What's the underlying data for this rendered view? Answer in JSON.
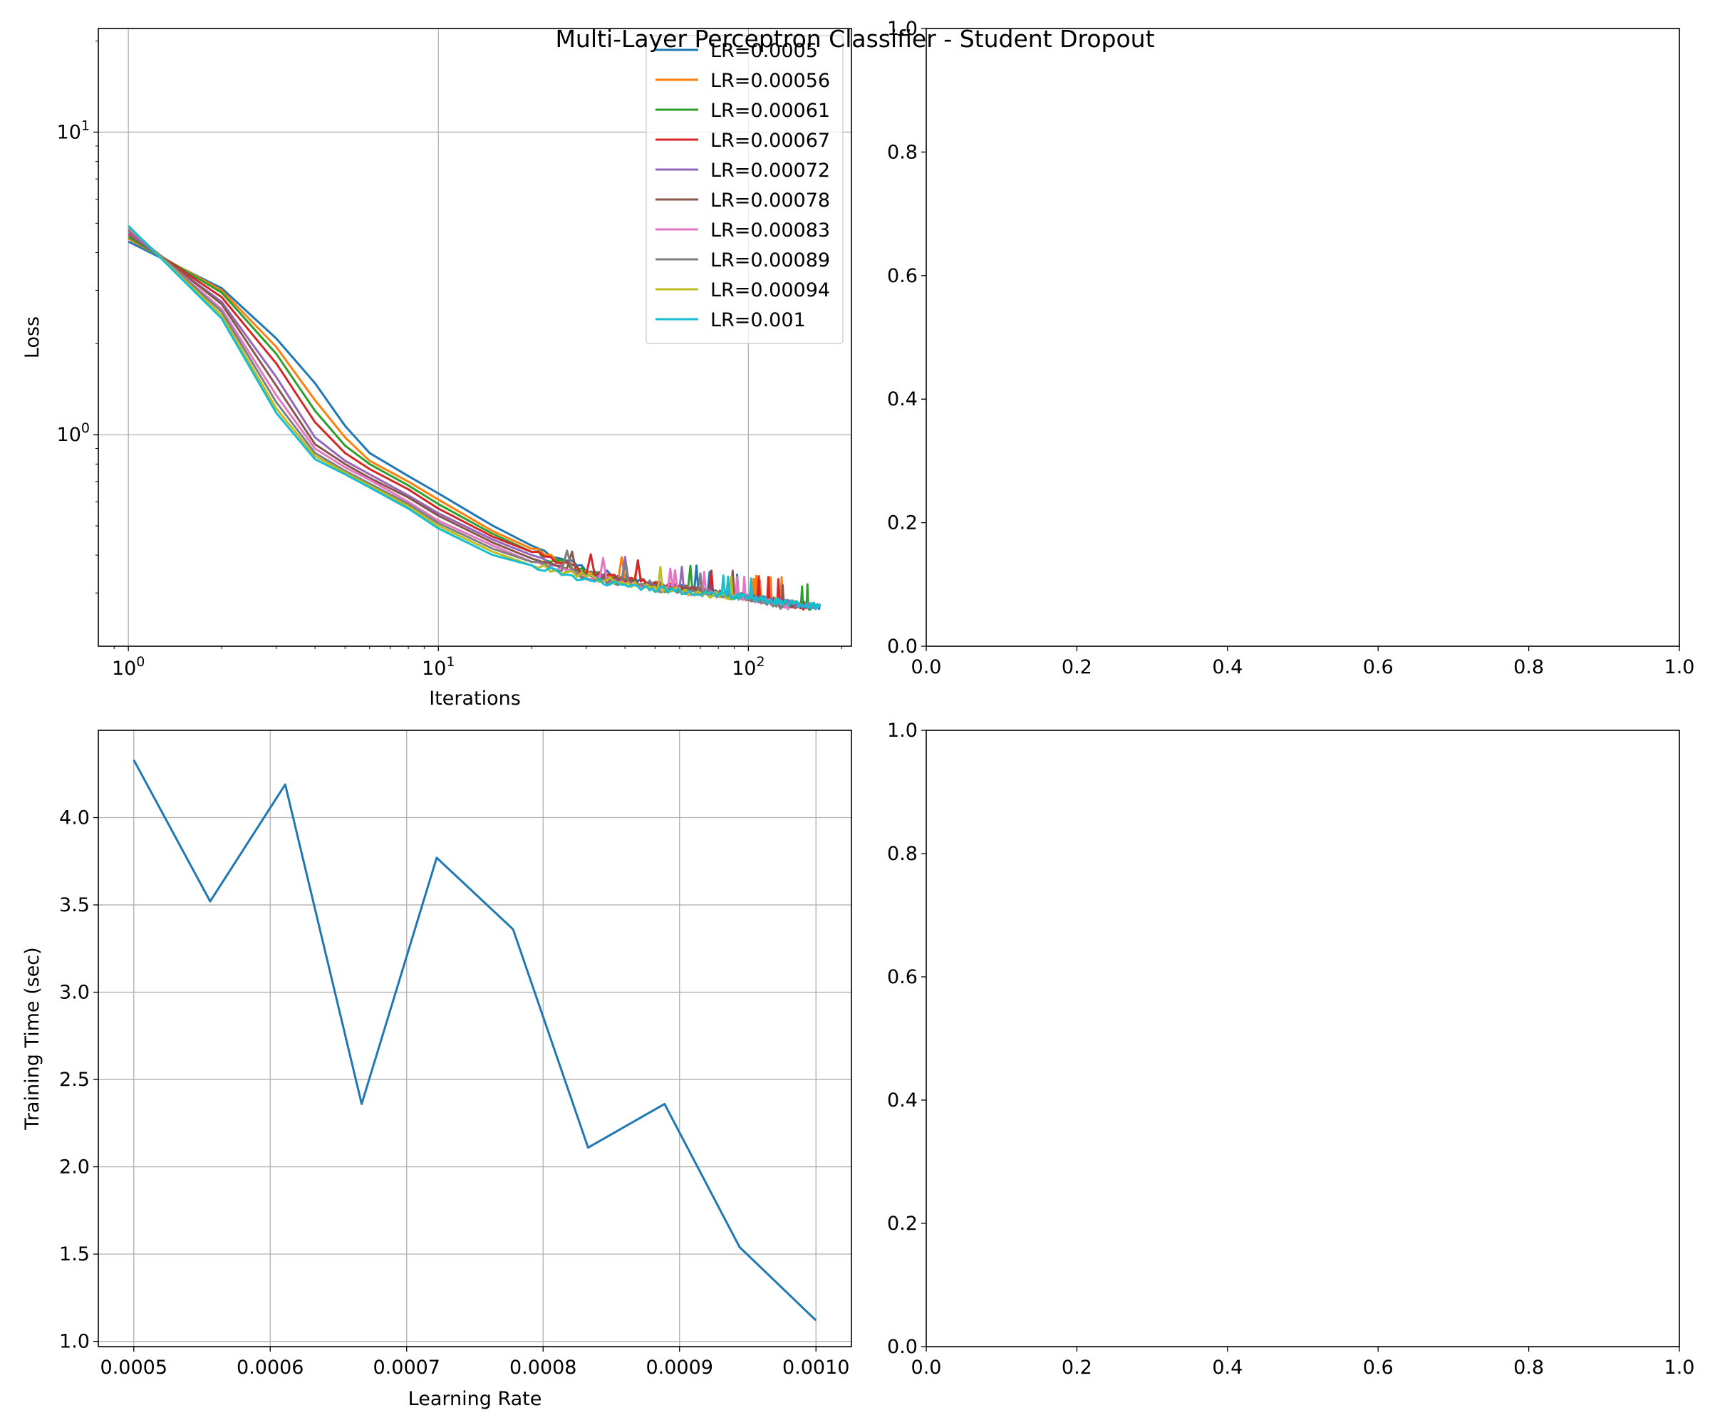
{
  "title": "Multi-Layer Perceptron Classifier - Student Dropout",
  "chart_data": [
    {
      "type": "line",
      "panel": "top-left",
      "xlabel": "Iterations",
      "ylabel": "Loss",
      "xscale": "log",
      "yscale": "log",
      "xlim": [
        0.8,
        215
      ],
      "ylim": [
        0.2,
        22
      ],
      "grid": true,
      "legend_placement": "upper-right",
      "x_ticks": [
        {
          "value": 1,
          "mantissa": "10",
          "exp": "0"
        },
        {
          "value": 10,
          "mantissa": "10",
          "exp": "1"
        },
        {
          "value": 100,
          "mantissa": "10",
          "exp": "2"
        }
      ],
      "y_ticks": [
        {
          "value": 1,
          "mantissa": "10",
          "exp": "0"
        },
        {
          "value": 10,
          "mantissa": "10",
          "exp": "1"
        }
      ],
      "series": [
        {
          "name": "LR=0.0005",
          "color": "#1f77b4",
          "n_iter": 170,
          "points": [
            [
              1,
              4.35
            ],
            [
              2,
              3.05
            ],
            [
              3,
              2.08
            ],
            [
              4,
              1.48
            ],
            [
              5,
              1.07
            ],
            [
              6,
              0.87
            ],
            [
              8,
              0.73
            ],
            [
              10,
              0.64
            ],
            [
              15,
              0.5
            ],
            [
              20,
              0.43
            ],
            [
              30,
              0.36
            ],
            [
              50,
              0.32
            ],
            [
              100,
              0.29
            ],
            [
              170,
              0.27
            ]
          ]
        },
        {
          "name": "LR=0.00056",
          "color": "#ff7f0e",
          "n_iter": 165,
          "points": [
            [
              1,
              4.45
            ],
            [
              2,
              3.0
            ],
            [
              3,
              1.95
            ],
            [
              4,
              1.3
            ],
            [
              5,
              0.98
            ],
            [
              6,
              0.82
            ],
            [
              8,
              0.7
            ],
            [
              10,
              0.61
            ],
            [
              15,
              0.48
            ],
            [
              20,
              0.42
            ],
            [
              30,
              0.35
            ],
            [
              50,
              0.32
            ],
            [
              100,
              0.29
            ],
            [
              165,
              0.27
            ]
          ]
        },
        {
          "name": "LR=0.00061",
          "color": "#2ca02c",
          "n_iter": 160,
          "points": [
            [
              1,
              4.5
            ],
            [
              2,
              2.95
            ],
            [
              3,
              1.85
            ],
            [
              4,
              1.2
            ],
            [
              5,
              0.92
            ],
            [
              6,
              0.8
            ],
            [
              8,
              0.68
            ],
            [
              10,
              0.59
            ],
            [
              15,
              0.47
            ],
            [
              20,
              0.41
            ],
            [
              30,
              0.35
            ],
            [
              50,
              0.32
            ],
            [
              100,
              0.29
            ],
            [
              160,
              0.27
            ]
          ]
        },
        {
          "name": "LR=0.00067",
          "color": "#d62728",
          "n_iter": 155,
          "points": [
            [
              1,
              4.6
            ],
            [
              2,
              2.85
            ],
            [
              3,
              1.72
            ],
            [
              4,
              1.1
            ],
            [
              5,
              0.87
            ],
            [
              6,
              0.77
            ],
            [
              8,
              0.66
            ],
            [
              10,
              0.57
            ],
            [
              15,
              0.46
            ],
            [
              20,
              0.41
            ],
            [
              30,
              0.35
            ],
            [
              50,
              0.32
            ],
            [
              100,
              0.29
            ],
            [
              155,
              0.27
            ]
          ]
        },
        {
          "name": "LR=0.00072",
          "color": "#9467bd",
          "n_iter": 170,
          "points": [
            [
              1,
              4.65
            ],
            [
              2,
              2.75
            ],
            [
              3,
              1.55
            ],
            [
              4,
              0.98
            ],
            [
              5,
              0.82
            ],
            [
              6,
              0.74
            ],
            [
              8,
              0.63
            ],
            [
              10,
              0.55
            ],
            [
              15,
              0.45
            ],
            [
              20,
              0.4
            ],
            [
              30,
              0.34
            ],
            [
              50,
              0.32
            ],
            [
              100,
              0.29
            ],
            [
              170,
              0.27
            ]
          ]
        },
        {
          "name": "LR=0.00078",
          "color": "#8c564b",
          "n_iter": 140,
          "points": [
            [
              1,
              4.75
            ],
            [
              2,
              2.7
            ],
            [
              3,
              1.45
            ],
            [
              4,
              0.93
            ],
            [
              5,
              0.8
            ],
            [
              6,
              0.72
            ],
            [
              8,
              0.62
            ],
            [
              10,
              0.54
            ],
            [
              15,
              0.44
            ],
            [
              20,
              0.39
            ],
            [
              30,
              0.34
            ],
            [
              50,
              0.32
            ],
            [
              100,
              0.29
            ],
            [
              140,
              0.27
            ]
          ]
        },
        {
          "name": "LR=0.00083",
          "color": "#e377c2",
          "n_iter": 135,
          "points": [
            [
              1,
              4.8
            ],
            [
              2,
              2.6
            ],
            [
              3,
              1.35
            ],
            [
              4,
              0.9
            ],
            [
              5,
              0.78
            ],
            [
              6,
              0.71
            ],
            [
              8,
              0.6
            ],
            [
              10,
              0.52
            ],
            [
              15,
              0.43
            ],
            [
              20,
              0.38
            ],
            [
              30,
              0.34
            ],
            [
              50,
              0.31
            ],
            [
              100,
              0.29
            ],
            [
              135,
              0.27
            ]
          ]
        },
        {
          "name": "LR=0.00089",
          "color": "#7f7f7f",
          "n_iter": 130,
          "points": [
            [
              1,
              4.85
            ],
            [
              2,
              2.55
            ],
            [
              3,
              1.28
            ],
            [
              4,
              0.87
            ],
            [
              5,
              0.76
            ],
            [
              6,
              0.69
            ],
            [
              8,
              0.59
            ],
            [
              10,
              0.51
            ],
            [
              15,
              0.42
            ],
            [
              20,
              0.38
            ],
            [
              30,
              0.34
            ],
            [
              50,
              0.31
            ],
            [
              100,
              0.29
            ],
            [
              130,
              0.27
            ]
          ]
        },
        {
          "name": "LR=0.00094",
          "color": "#bcbd22",
          "n_iter": 90,
          "points": [
            [
              1,
              4.88
            ],
            [
              2,
              2.48
            ],
            [
              3,
              1.22
            ],
            [
              4,
              0.85
            ],
            [
              5,
              0.75
            ],
            [
              6,
              0.68
            ],
            [
              8,
              0.58
            ],
            [
              10,
              0.5
            ],
            [
              15,
              0.41
            ],
            [
              20,
              0.37
            ],
            [
              30,
              0.34
            ],
            [
              50,
              0.31
            ],
            [
              90,
              0.29
            ]
          ]
        },
        {
          "name": "LR=0.001",
          "color": "#17becf",
          "n_iter": 170,
          "points": [
            [
              1,
              4.9
            ],
            [
              2,
              2.42
            ],
            [
              3,
              1.18
            ],
            [
              4,
              0.83
            ],
            [
              5,
              0.74
            ],
            [
              6,
              0.67
            ],
            [
              8,
              0.57
            ],
            [
              10,
              0.49
            ],
            [
              15,
              0.4
            ],
            [
              20,
              0.37
            ],
            [
              30,
              0.33
            ],
            [
              50,
              0.31
            ],
            [
              100,
              0.29
            ],
            [
              170,
              0.27
            ]
          ]
        }
      ]
    },
    {
      "type": "line",
      "panel": "top-right",
      "xlim": [
        0,
        1
      ],
      "ylim": [
        0,
        1
      ],
      "grid": false,
      "x_ticks": [
        "0.0",
        "0.2",
        "0.4",
        "0.6",
        "0.8",
        "1.0"
      ],
      "y_ticks": [
        "0.0",
        "0.2",
        "0.4",
        "0.6",
        "0.8",
        "1.0"
      ],
      "series": []
    },
    {
      "type": "line",
      "panel": "bottom-left",
      "xlabel": "Learning Rate",
      "ylabel": "Training Time (sec)",
      "xlim": [
        0.000474,
        0.001026
      ],
      "ylim": [
        0.97,
        4.5
      ],
      "grid": true,
      "x_ticks": [
        "0.0005",
        "0.0006",
        "0.0007",
        "0.0008",
        "0.0009",
        "0.0010"
      ],
      "y_ticks": [
        "1.0",
        "1.5",
        "2.0",
        "2.5",
        "3.0",
        "3.5",
        "4.0"
      ],
      "series": [
        {
          "color": "#1f77b4",
          "x": [
            0.0005,
            0.000556,
            0.000611,
            0.000667,
            0.000722,
            0.000778,
            0.000833,
            0.000889,
            0.000944,
            0.001
          ],
          "y": [
            4.33,
            3.52,
            4.19,
            2.36,
            3.77,
            3.36,
            2.11,
            2.36,
            1.54,
            1.12
          ]
        }
      ]
    },
    {
      "type": "line",
      "panel": "bottom-right",
      "xlim": [
        0,
        1
      ],
      "ylim": [
        0,
        1
      ],
      "grid": false,
      "x_ticks": [
        "0.0",
        "0.2",
        "0.4",
        "0.6",
        "0.8",
        "1.0"
      ],
      "y_ticks": [
        "0.0",
        "0.2",
        "0.4",
        "0.6",
        "0.8",
        "1.0"
      ],
      "series": []
    }
  ]
}
